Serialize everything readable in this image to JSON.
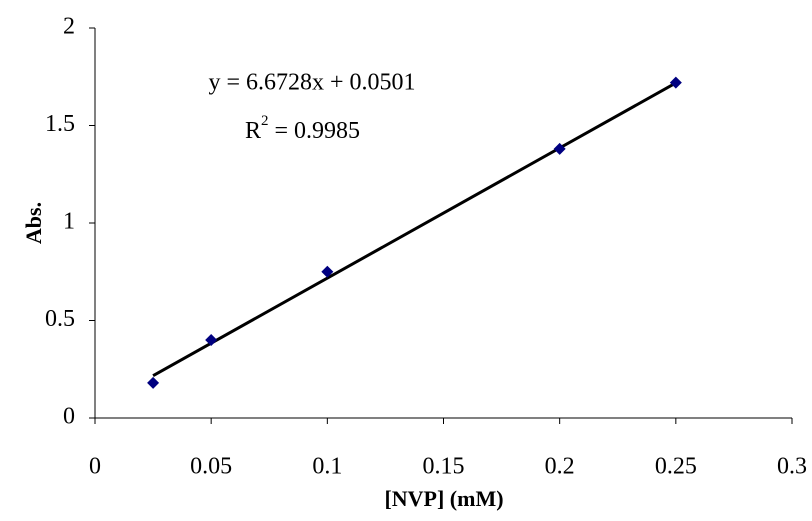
{
  "chart_data": {
    "type": "scatter",
    "x_label": "[NVP] (mM)",
    "y_label": "Abs.",
    "x": [
      0.025,
      0.05,
      0.1,
      0.2,
      0.25
    ],
    "values": [
      0.18,
      0.4,
      0.75,
      1.38,
      1.72
    ],
    "color": "#000080",
    "xlim": [
      0,
      0.3
    ],
    "ylim": [
      0,
      2
    ],
    "xticks": [
      0,
      0.05,
      0.1,
      0.15,
      0.2,
      0.25,
      0.3
    ],
    "yticks": [
      0,
      0.5,
      1,
      1.5,
      2
    ],
    "trendline": {
      "slope": 6.6728,
      "intercept": 0.0501,
      "color": "#000000"
    },
    "equation": "y = 6.6728x + 0.0501",
    "r_squared": {
      "symbol": "R",
      "exponent": "2",
      "text": " = 0.9985"
    }
  }
}
